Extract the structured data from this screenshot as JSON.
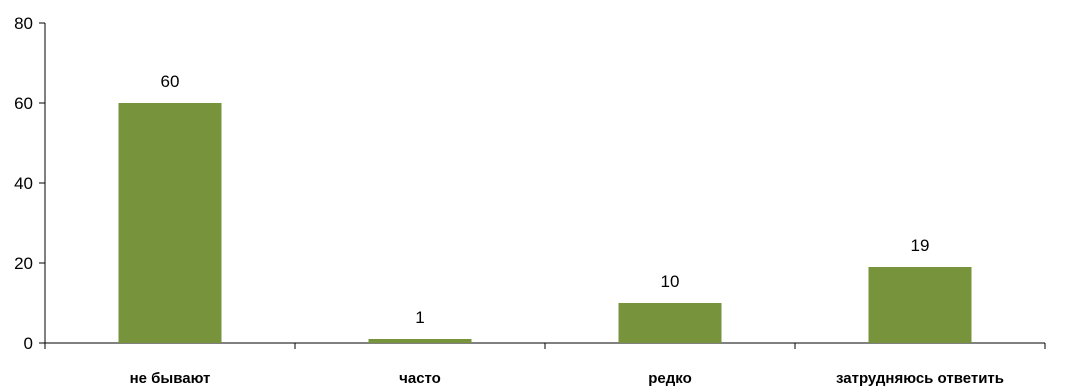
{
  "chart_data": {
    "type": "bar",
    "title": "",
    "xlabel": "",
    "ylabel": "",
    "categories": [
      "не бывают",
      "часто",
      "редко",
      "затрудняюсь ответить"
    ],
    "values": [
      60,
      1,
      10,
      19
    ],
    "data_labels": [
      "60",
      "1",
      "10",
      "19"
    ],
    "ylim": [
      0,
      80
    ],
    "yticks": [
      0,
      20,
      40,
      60,
      80
    ],
    "ytick_labels": [
      "0",
      "20",
      "40",
      "60",
      "80"
    ],
    "grid": false,
    "legend": "none",
    "bar_color": "#77933c"
  }
}
